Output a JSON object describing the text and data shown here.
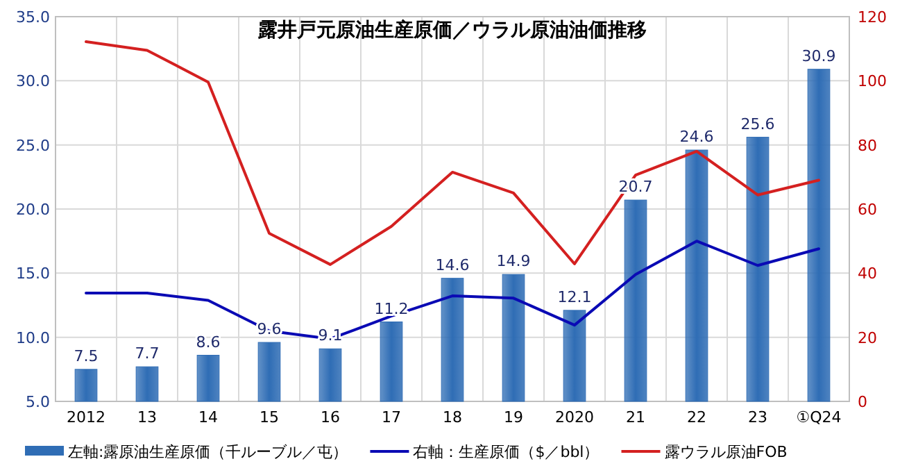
{
  "chart_data": {
    "type": "bar",
    "title": "露井戸元原油生産原価／ウラル原油油価推移",
    "categories": [
      "2012",
      "13",
      "14",
      "15",
      "16",
      "17",
      "18",
      "19",
      "2020",
      "21",
      "22",
      "23",
      "①Q24"
    ],
    "series": [
      {
        "name": "左軸:露原油生産原価（千ルーブル／屯）",
        "color": "#2f6db5",
        "values": [
          7.5,
          7.7,
          8.6,
          9.6,
          9.1,
          11.2,
          14.6,
          14.9,
          12.1,
          20.7,
          24.6,
          25.6,
          30.9
        ],
        "value_labels": [
          "7.5",
          "7.7",
          "8.6",
          "9.6",
          "9.1",
          "11.2",
          "14.6",
          "14.9",
          "12.1",
          "20.7",
          "24.6",
          "25.6",
          "30.9"
        ]
      },
      {
        "name": "右軸：生産原価（$／bbl）",
        "type": "line",
        "axis": "y2",
        "color": "#0a0ab4",
        "values": [
          33.8,
          33.8,
          31.5,
          22,
          19.5,
          26.6,
          32.9,
          32.2,
          23.8,
          39.6,
          50,
          42.4,
          47.6
        ]
      },
      {
        "name": "露ウラル原油FOB",
        "type": "line",
        "axis": "y2",
        "color": "#d42020",
        "values": [
          112.2,
          109.5,
          99.6,
          52.4,
          42.7,
          54.6,
          71.5,
          65,
          42.9,
          70.6,
          78,
          64.4,
          69
        ]
      }
    ],
    "ylim": [
      5,
      35
    ],
    "yticks": [
      {
        "value": 5,
        "label": "5.0"
      },
      {
        "value": 10,
        "label": "10.0"
      },
      {
        "value": 15,
        "label": "15.0"
      },
      {
        "value": 20,
        "label": "20.0"
      },
      {
        "value": 25,
        "label": "25.0"
      },
      {
        "value": 30,
        "label": "30.0"
      },
      {
        "value": 35,
        "label": "35.0"
      }
    ],
    "y2lim": [
      0,
      120
    ],
    "y2ticks": [
      0,
      20,
      40,
      60,
      80,
      100,
      120
    ],
    "grid": true,
    "legend": "bottom"
  }
}
